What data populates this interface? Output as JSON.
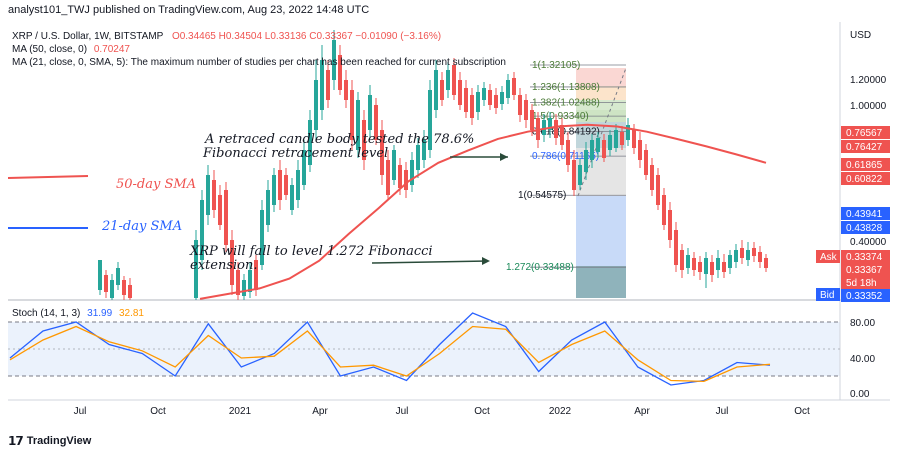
{
  "header": {
    "publish_line": "analyst101_TWJ published on TradingView.com, Aug 23, 2022 14:48 UTC"
  },
  "legend": {
    "symbol": "XRP / U.S. Dollar, 1W, BITSTAMP",
    "ohlc": "O0.34465 H0.34504 L0.33136 C0.33367 −0.01090 (−3.16%)",
    "ma50_label": "MA (50, close, 0)",
    "ma50_value": "0.70247",
    "ma21_label": "MA (21, close, 0, SMA, 5): The maximum number of studies per chart has been reached for current subscription",
    "stoch_label": "Stoch (14, 1, 3)",
    "stoch_k": "31.99",
    "stoch_d": "32.81"
  },
  "annotations": {
    "retrace_line1": "A retraced candle body tested the 78.6%",
    "retrace_line2": "Fibonacci retracement level",
    "fall_line1": "XRP will fall to level 1.272 Fibonacci",
    "fall_line2": "extension.",
    "sma50": "50-day SMA",
    "sma21": "21-day SMA"
  },
  "fib_levels": [
    {
      "label": "1(1.32105)",
      "price": 1.32105
    },
    {
      "label": "1.236(1.13808)",
      "price": 1.13808
    },
    {
      "label": "1.382(1.02488)",
      "price": 1.02488
    },
    {
      "label": "1.5(0.93340)",
      "price": 0.9334
    },
    {
      "label": "0.618(0.84192)",
      "price": 0.84192
    },
    {
      "label": "0.786(0.71165)",
      "price": 0.71165
    },
    {
      "label": "1(0.54575)",
      "price": 0.54575
    },
    {
      "label": "1.272(0.33488)",
      "price": 0.33488
    }
  ],
  "price_axis": {
    "currency": "USD",
    "ticks": [
      "1.20000",
      "1.00000",
      "0.40000"
    ],
    "tags": [
      {
        "text": "0.76567",
        "color": "#ef5350"
      },
      {
        "text": "0.76427",
        "color": "#ef5350"
      },
      {
        "text": "0.61865",
        "color": "#ef5350"
      },
      {
        "text": "0.60822",
        "color": "#ef5350"
      },
      {
        "text": "0.43941",
        "color": "#2962ff"
      },
      {
        "text": "0.43828",
        "color": "#2962ff"
      },
      {
        "text": "0.33374",
        "color": "#ef5350"
      },
      {
        "text": "0.33367",
        "color": "#ef5350"
      },
      {
        "text": "5d 18h",
        "color": "#ef5350"
      },
      {
        "text": "0.33352",
        "color": "#2962ff"
      }
    ],
    "ask_label": "Ask",
    "bid_label": "Bid"
  },
  "stoch_axis": {
    "ticks": [
      "80.00",
      "40.00",
      "0.00"
    ]
  },
  "time_axis": {
    "labels": [
      "Jul",
      "Oct",
      "2021",
      "Apr",
      "Jul",
      "Oct",
      "2022",
      "Apr",
      "Jul",
      "Oct"
    ]
  },
  "colors": {
    "up": "#26a69a",
    "down": "#ef5350",
    "sma50": "#ef5350",
    "sma21": "#2962ff",
    "stoch_k": "#2962ff",
    "stoch_d": "#ff9800"
  },
  "footer": {
    "brand": "TradingView"
  },
  "chart_data": {
    "type": "candlestick",
    "title": "XRP / U.S. Dollar, 1W, BITSTAMP",
    "y_scale": "log",
    "series": [
      {
        "name": "MA (50, close, 0)",
        "values": [
          0.27,
          0.28,
          0.29,
          0.31,
          0.35,
          0.42,
          0.5,
          0.6,
          0.68,
          0.74,
          0.8,
          0.84,
          0.87,
          0.88,
          0.87,
          0.84,
          0.8,
          0.76,
          0.72,
          0.68
        ]
      },
      {
        "name": "Stoch %K",
        "values": [
          40,
          70,
          80,
          55,
          45,
          20,
          78,
          30,
          45,
          80,
          20,
          30,
          15,
          55,
          90,
          75,
          25,
          60,
          80,
          30,
          10,
          15,
          35,
          32
        ]
      },
      {
        "name": "Stoch %D",
        "values": [
          38,
          60,
          75,
          58,
          48,
          30,
          65,
          40,
          42,
          70,
          30,
          32,
          20,
          45,
          75,
          72,
          35,
          55,
          70,
          38,
          15,
          14,
          30,
          33
        ]
      }
    ],
    "ohlc_last": {
      "open": 0.34465,
      "high": 0.34504,
      "low": 0.33136,
      "close": 0.33367
    },
    "x_labels": [
      "Jul",
      "Oct",
      "2021",
      "Apr",
      "Jul",
      "Oct",
      "2022",
      "Apr",
      "Jul",
      "Oct"
    ],
    "stoch_ylim": [
      0,
      100
    ]
  }
}
